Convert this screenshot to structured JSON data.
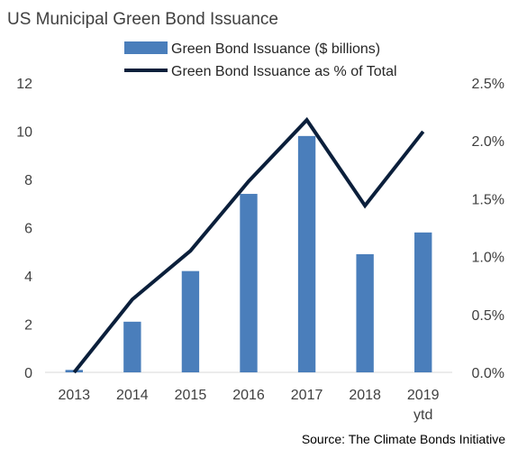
{
  "chart_data": {
    "type": "bar",
    "title": "US Municipal Green Bond Issuance",
    "source": "Source: The Climate Bonds Initiative",
    "categories": [
      "2013",
      "2014",
      "2015",
      "2016",
      "2017",
      "2018",
      "2019"
    ],
    "category_sublabels": [
      "",
      "",
      "",
      "",
      "",
      "",
      "ytd"
    ],
    "series": [
      {
        "name": "Green Bond Issuance ($ billions)",
        "type": "bar",
        "axis": "left",
        "color": "#4a7ebb",
        "values": [
          0.1,
          2.1,
          4.2,
          7.4,
          9.8,
          4.9,
          5.8
        ]
      },
      {
        "name": "Green Bond Issuance as % of Total",
        "type": "line",
        "axis": "right",
        "color": "#0b1f3b",
        "values": [
          0.0,
          0.63,
          1.05,
          1.65,
          2.18,
          1.44,
          2.08
        ]
      }
    ],
    "y_left": {
      "ylim": [
        0,
        12
      ],
      "ticks": [
        "0",
        "2",
        "4",
        "6",
        "8",
        "10",
        "12"
      ]
    },
    "y_right": {
      "ylim": [
        0,
        2.5
      ],
      "ticks": [
        "0.0%",
        "0.5%",
        "1.0%",
        "1.5%",
        "2.0%",
        "2.5%"
      ]
    },
    "legend_position": "top-center",
    "grid": false
  }
}
